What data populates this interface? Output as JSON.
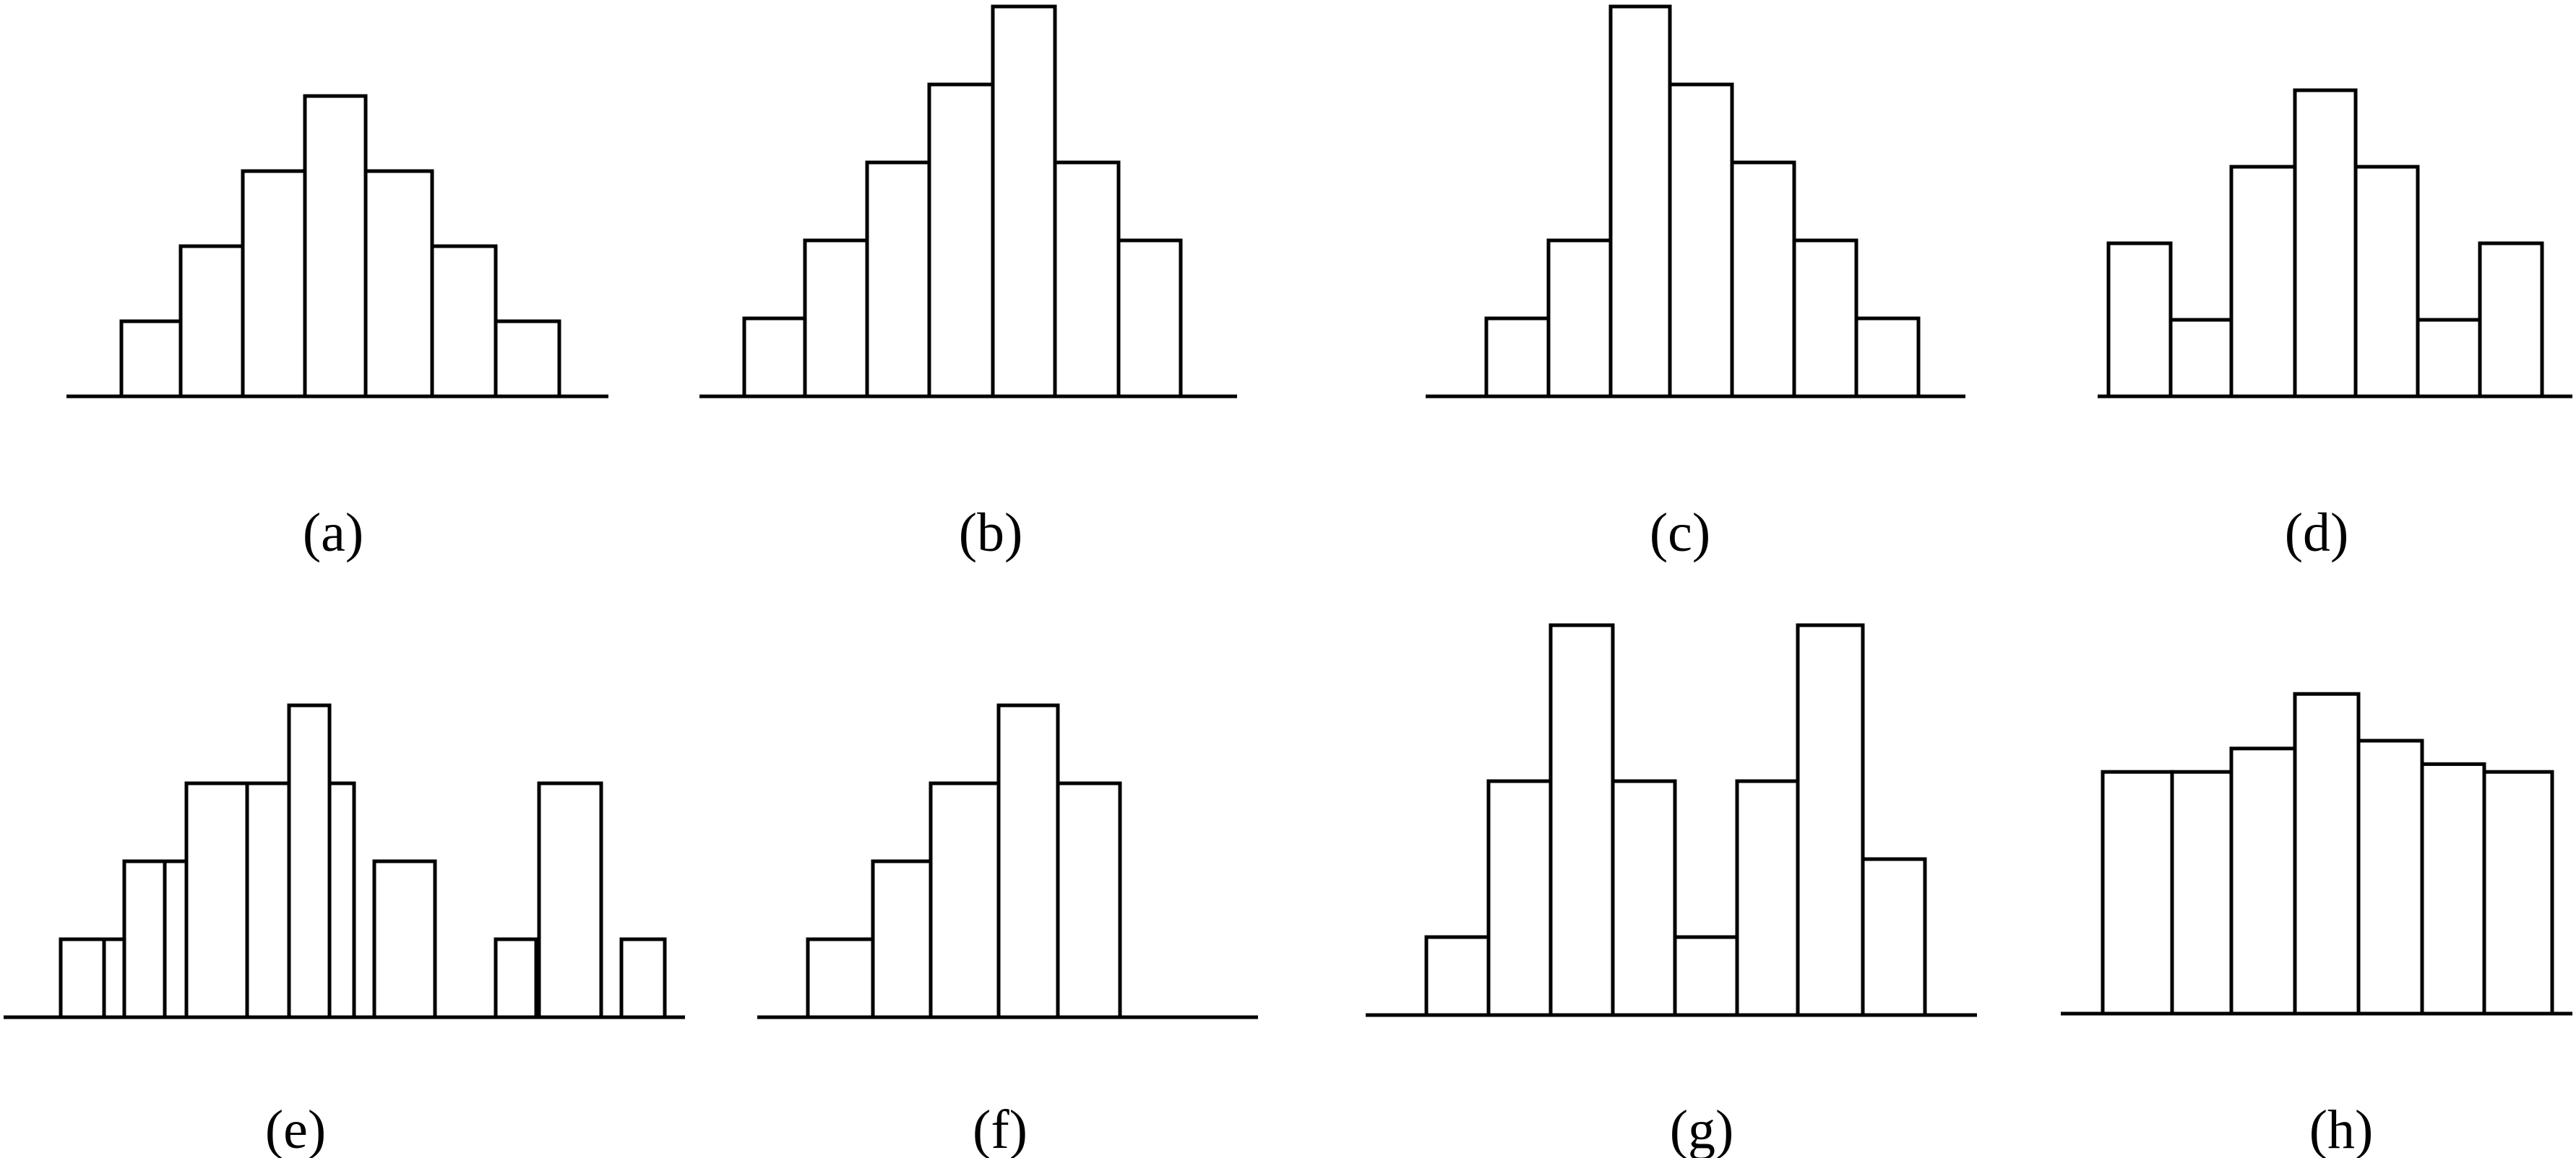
{
  "figure": {
    "colors": {
      "bar_fill": "#ffffff",
      "bar_stroke": "#000000",
      "background": "#ffffff"
    }
  },
  "chart_data": [
    {
      "type": "bar",
      "label": "(a)",
      "values": [
        1,
        2,
        3,
        4,
        3,
        2,
        1
      ],
      "ylim": [
        0,
        5
      ],
      "grid": false
    },
    {
      "type": "bar",
      "label": "(b)",
      "values": [
        1,
        2,
        3,
        4,
        5,
        3,
        2
      ],
      "ylim": [
        0,
        5
      ],
      "grid": false
    },
    {
      "type": "bar",
      "label": "(c)",
      "values": [
        1,
        2,
        5,
        4,
        3,
        2,
        1
      ],
      "ylim": [
        0,
        5
      ],
      "grid": false
    },
    {
      "type": "bar",
      "label": "(d)",
      "values": [
        2,
        1,
        3,
        4,
        3,
        1,
        2
      ],
      "ylim": [
        0,
        5
      ],
      "grid": false
    },
    {
      "type": "bar",
      "label": "(e)",
      "values": [
        1,
        1,
        2,
        2,
        3,
        3,
        4,
        3,
        2,
        0,
        1,
        3,
        1
      ],
      "ylim": [
        0,
        5
      ],
      "grid": false
    },
    {
      "type": "bar",
      "label": "(f)",
      "values": [
        1,
        2,
        3,
        4,
        3
      ],
      "ylim": [
        0,
        5
      ],
      "grid": false
    },
    {
      "type": "bar",
      "label": "(g)",
      "values": [
        1,
        3,
        5,
        3,
        1,
        3,
        5,
        2
      ],
      "ylim": [
        0,
        5
      ],
      "grid": false
    },
    {
      "type": "bar",
      "label": "(h)",
      "values": [
        3.1,
        3.1,
        3.4,
        4.1,
        3.5,
        3.2,
        3.1
      ],
      "ylim": [
        0,
        5
      ],
      "grid": false
    }
  ]
}
